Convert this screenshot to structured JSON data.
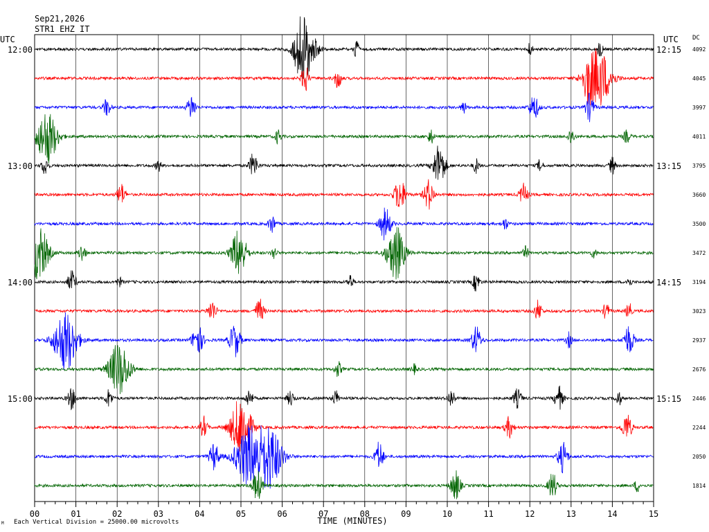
{
  "header": {
    "date": "Sep21,2026",
    "station": "STR1 EHZ IT",
    "left_tz": "UTC",
    "right_tz": "UTC",
    "dc_label": "DC"
  },
  "footer": {
    "scale_note": "Each Vertical Division = 25000.00 microvolts",
    "corner_mark": "M"
  },
  "chart_data": {
    "type": "line",
    "title": "",
    "xlabel": "TIME (MINUTES)",
    "ylabel": "",
    "xlim": [
      0,
      15
    ],
    "x_ticks": [
      "00",
      "01",
      "02",
      "03",
      "04",
      "05",
      "06",
      "07",
      "08",
      "09",
      "10",
      "11",
      "12",
      "13",
      "14",
      "15"
    ],
    "left_hour_labels": [
      "12:00",
      "13:00",
      "14:00",
      "15:00"
    ],
    "right_hour_labels": [
      "12:15",
      "13:15",
      "14:15",
      "15:15"
    ],
    "trace_colors": [
      "#000000",
      "#ff0000",
      "#0000ff",
      "#006400"
    ],
    "grid": true,
    "traces": [
      {
        "dc": "4092",
        "events": [
          [
            6.55,
            1.0,
            30
          ],
          [
            6.4,
            0.4,
            12
          ],
          [
            7.8,
            0.3,
            8
          ],
          [
            12.0,
            0.2,
            8
          ],
          [
            13.7,
            0.25,
            8
          ]
        ]
      },
      {
        "dc": "4045",
        "events": [
          [
            6.55,
            0.5,
            10
          ],
          [
            7.35,
            0.35,
            10
          ],
          [
            13.65,
            1.0,
            38
          ],
          [
            13.4,
            0.4,
            10
          ]
        ]
      },
      {
        "dc": "3997",
        "events": [
          [
            1.75,
            0.3,
            10
          ],
          [
            3.8,
            0.4,
            12
          ],
          [
            10.4,
            0.2,
            8
          ],
          [
            12.1,
            0.4,
            14
          ],
          [
            13.45,
            0.45,
            12
          ]
        ]
      },
      {
        "dc": "4011",
        "events": [
          [
            0.3,
            0.9,
            30
          ],
          [
            5.9,
            0.25,
            8
          ],
          [
            9.6,
            0.25,
            8
          ],
          [
            13.0,
            0.25,
            10
          ],
          [
            14.35,
            0.2,
            10
          ]
        ]
      },
      {
        "dc": "3795",
        "events": [
          [
            0.25,
            0.3,
            10
          ],
          [
            3.0,
            0.2,
            8
          ],
          [
            5.3,
            0.4,
            12
          ],
          [
            9.8,
            0.7,
            18
          ],
          [
            10.7,
            0.25,
            8
          ],
          [
            12.25,
            0.2,
            8
          ],
          [
            14.0,
            0.3,
            8
          ]
        ]
      },
      {
        "dc": "3660",
        "events": [
          [
            2.1,
            0.35,
            12
          ],
          [
            8.85,
            0.55,
            16
          ],
          [
            9.55,
            0.5,
            14
          ],
          [
            11.85,
            0.35,
            12
          ]
        ]
      },
      {
        "dc": "3500",
        "events": [
          [
            5.75,
            0.3,
            10
          ],
          [
            8.5,
            0.55,
            16
          ],
          [
            11.4,
            0.2,
            8
          ]
        ]
      },
      {
        "dc": "3472",
        "events": [
          [
            0.1,
            0.9,
            28
          ],
          [
            1.15,
            0.3,
            10
          ],
          [
            4.95,
            0.8,
            22
          ],
          [
            5.8,
            0.2,
            8
          ],
          [
            8.75,
            0.9,
            26
          ],
          [
            11.9,
            0.2,
            8
          ],
          [
            13.55,
            0.15,
            8
          ]
        ]
      },
      {
        "dc": "3194",
        "events": [
          [
            0.9,
            0.35,
            12
          ],
          [
            2.05,
            0.15,
            8
          ],
          [
            7.65,
            0.25,
            8
          ],
          [
            10.7,
            0.3,
            10
          ],
          [
            14.4,
            0.15,
            8
          ]
        ]
      },
      {
        "dc": "3023",
        "events": [
          [
            4.3,
            0.35,
            12
          ],
          [
            5.45,
            0.4,
            12
          ],
          [
            12.2,
            0.35,
            10
          ],
          [
            13.85,
            0.3,
            8
          ],
          [
            14.4,
            0.3,
            8
          ]
        ]
      },
      {
        "dc": "2937",
        "events": [
          [
            0.75,
            1.0,
            34
          ],
          [
            3.95,
            0.5,
            16
          ],
          [
            4.85,
            0.55,
            16
          ],
          [
            10.7,
            0.45,
            14
          ],
          [
            12.95,
            0.25,
            8
          ],
          [
            14.4,
            0.5,
            14
          ]
        ]
      },
      {
        "dc": "2676",
        "events": [
          [
            2.05,
            0.9,
            30
          ],
          [
            7.35,
            0.25,
            10
          ],
          [
            9.2,
            0.15,
            8
          ]
        ]
      },
      {
        "dc": "2446",
        "events": [
          [
            0.9,
            0.35,
            12
          ],
          [
            1.8,
            0.3,
            10
          ],
          [
            5.2,
            0.3,
            10
          ],
          [
            6.2,
            0.25,
            10
          ],
          [
            7.3,
            0.25,
            10
          ],
          [
            10.1,
            0.3,
            10
          ],
          [
            11.7,
            0.3,
            12
          ],
          [
            12.7,
            0.4,
            12
          ],
          [
            14.15,
            0.25,
            8
          ]
        ]
      },
      {
        "dc": "2244",
        "events": [
          [
            4.1,
            0.35,
            10
          ],
          [
            5.0,
            1.0,
            30
          ],
          [
            11.5,
            0.35,
            12
          ],
          [
            14.35,
            0.45,
            14
          ]
        ]
      },
      {
        "dc": "2050",
        "events": [
          [
            4.35,
            0.45,
            14
          ],
          [
            5.2,
            1.0,
            40
          ],
          [
            5.7,
            1.0,
            36
          ],
          [
            8.35,
            0.5,
            12
          ],
          [
            12.8,
            0.5,
            14
          ]
        ]
      },
      {
        "dc": "1814",
        "events": [
          [
            5.4,
            0.5,
            14
          ],
          [
            10.2,
            0.5,
            14
          ],
          [
            12.55,
            0.45,
            12
          ],
          [
            14.6,
            0.2,
            8
          ]
        ]
      }
    ]
  }
}
